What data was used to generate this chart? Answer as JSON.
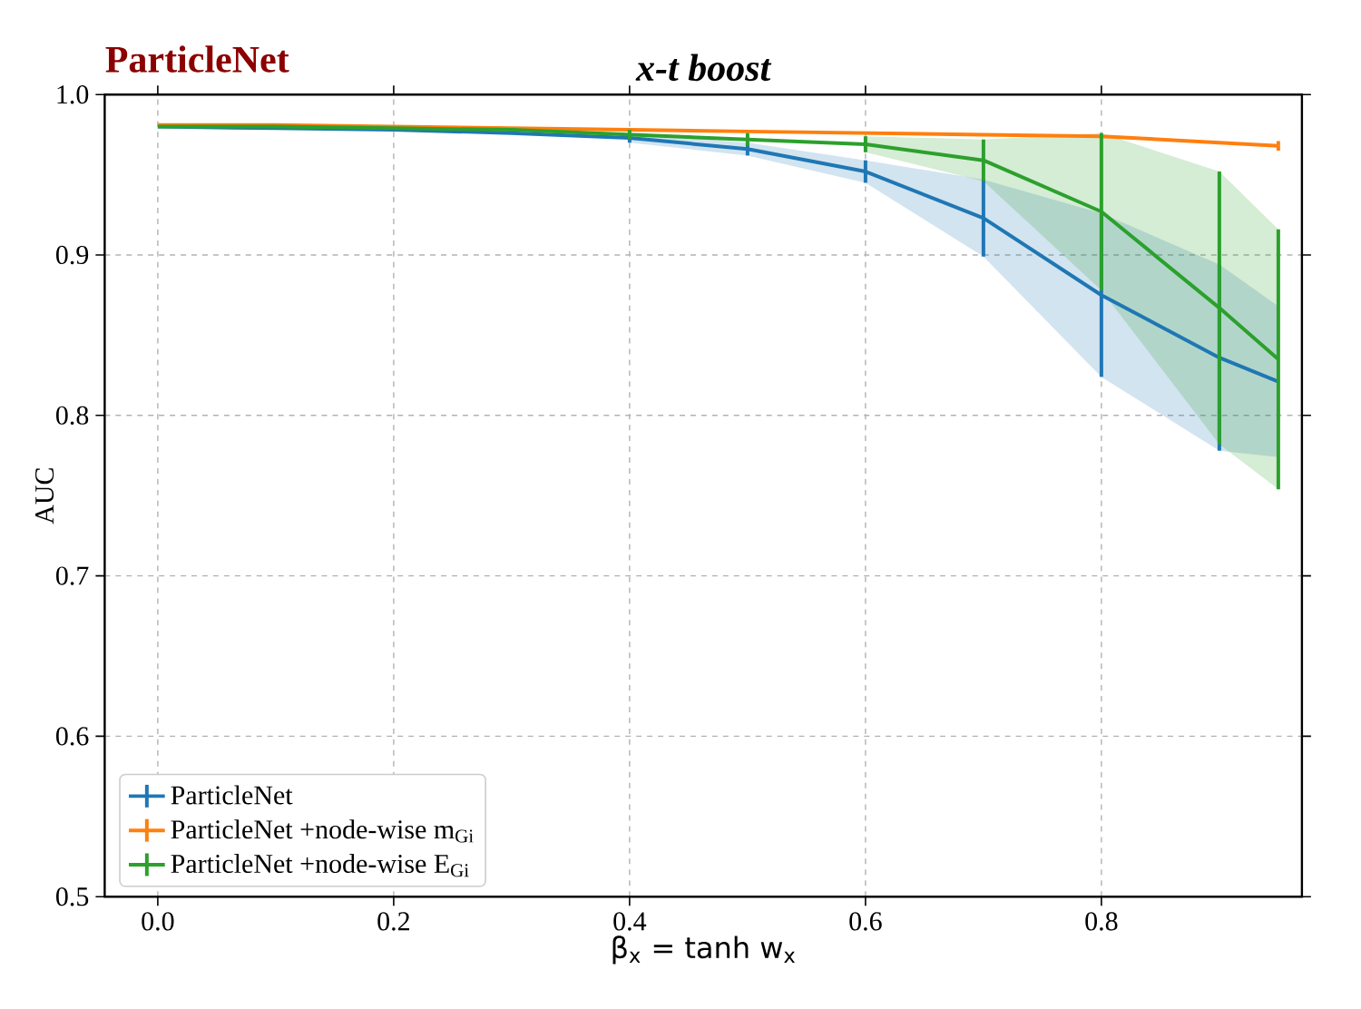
{
  "chart_data": {
    "type": "line",
    "title": "x-t boost",
    "annotations": [
      "ParticleNet"
    ],
    "xlabel": "β$_{x}$ = tanh  w$_{x}$",
    "ylabel": "AUC",
    "x": [
      0,
      0.1,
      0.2,
      0.3,
      0.4,
      0.5,
      0.6,
      0.7,
      0.8,
      0.9,
      0.95
    ],
    "series": [
      {
        "name": "ParticleNet",
        "color": "#1f77b4",
        "values": [
          0.98,
          0.979,
          0.978,
          0.976,
          0.973,
          0.966,
          0.952,
          0.923,
          0.875,
          0.836,
          0.821
        ],
        "errors": [
          null,
          null,
          null,
          null,
          0.003,
          0.004,
          0.007,
          0.024,
          0.051,
          0.058,
          null
        ],
        "lower": [
          null,
          null,
          null,
          null,
          0.97,
          0.962,
          0.945,
          0.899,
          0.824,
          0.778,
          0.774
        ],
        "upper": [
          null,
          null,
          null,
          null,
          0.976,
          0.97,
          0.959,
          0.947,
          0.926,
          0.894,
          0.868
        ]
      },
      {
        "name": "ParticleNet +node-wise m$_{Gi}$",
        "color": "#ff7f0e",
        "values": [
          0.981,
          0.981,
          0.98,
          0.979,
          0.978,
          0.977,
          0.976,
          0.975,
          0.974,
          0.97,
          0.968
        ],
        "errors": [
          null,
          null,
          null,
          null,
          null,
          null,
          null,
          null,
          null,
          null,
          0.003
        ]
      },
      {
        "name": "ParticleNet +node-wise E$_{Gi}$",
        "color": "#2ca02c",
        "values": [
          0.98,
          0.98,
          0.979,
          0.978,
          0.975,
          0.972,
          0.969,
          0.959,
          0.927,
          0.867,
          0.835
        ],
        "errors": [
          null,
          null,
          null,
          null,
          0.003,
          0.004,
          0.005,
          0.013,
          0.049,
          0.085,
          0.081
        ],
        "lower": [
          null,
          null,
          null,
          null,
          null,
          null,
          0.964,
          0.946,
          0.878,
          0.782,
          0.754
        ],
        "upper": [
          null,
          null,
          null,
          null,
          null,
          null,
          0.974,
          0.972,
          0.976,
          0.952,
          0.916
        ]
      }
    ],
    "xlim": [
      -0.045,
      0.97
    ],
    "ylim": [
      0.5,
      1.0
    ],
    "xticks": [
      {
        "value": 0,
        "label": "0.0"
      },
      0.2,
      0.4,
      0.6,
      0.8
    ],
    "yticks": [
      0.5,
      0.6,
      0.7,
      0.8,
      0.9,
      {
        "value": 1.0,
        "label": "1.0"
      }
    ],
    "grid": true,
    "legend": "bottom left",
    "line_style": "solid"
  }
}
